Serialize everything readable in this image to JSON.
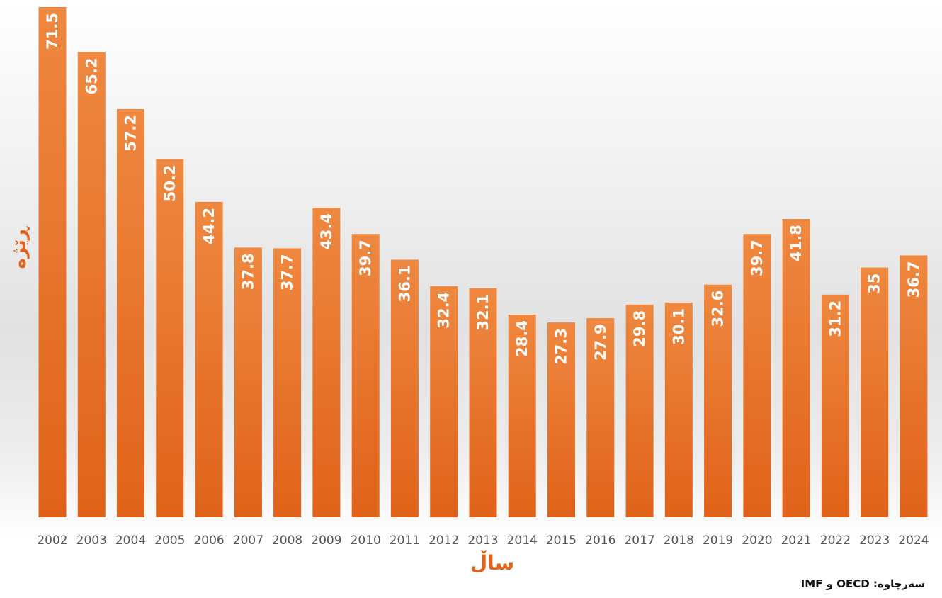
{
  "chart_data": {
    "type": "bar",
    "title": "",
    "xlabel": "ساڵ",
    "ylabel": "ڕێژە",
    "source": "سەرچاوە: OECD و IMF",
    "categories": [
      "2002",
      "2003",
      "2004",
      "2005",
      "2006",
      "2007",
      "2008",
      "2009",
      "2010",
      "2011",
      "2012",
      "2013",
      "2014",
      "2015",
      "2016",
      "2017",
      "2018",
      "2019",
      "2020",
      "2021",
      "2022",
      "2023",
      "2024"
    ],
    "values": [
      71.5,
      65.2,
      57.2,
      50.2,
      44.2,
      37.8,
      37.7,
      43.4,
      39.7,
      36.1,
      32.4,
      32.1,
      28.4,
      27.3,
      27.9,
      29.8,
      30.1,
      32.6,
      39.7,
      41.8,
      31.2,
      35,
      36.7
    ],
    "value_labels": [
      "71.5",
      "65.2",
      "57.2",
      "50.2",
      "44.2",
      "37.8",
      "37.7",
      "43.4",
      "39.7",
      "36.1",
      "32.4",
      "32.1",
      "28.4",
      "27.3",
      "27.9",
      "29.8",
      "30.1",
      "32.6",
      "39.7",
      "41.8",
      "31.2",
      "35",
      "36.7"
    ],
    "ylim": [
      0,
      72
    ],
    "grid": false,
    "legend": "none",
    "bar_color": "#e8702a",
    "bar_color_light": "#ef8840",
    "bar_color_dark": "#e0621a",
    "label_color": "#ffffff"
  }
}
